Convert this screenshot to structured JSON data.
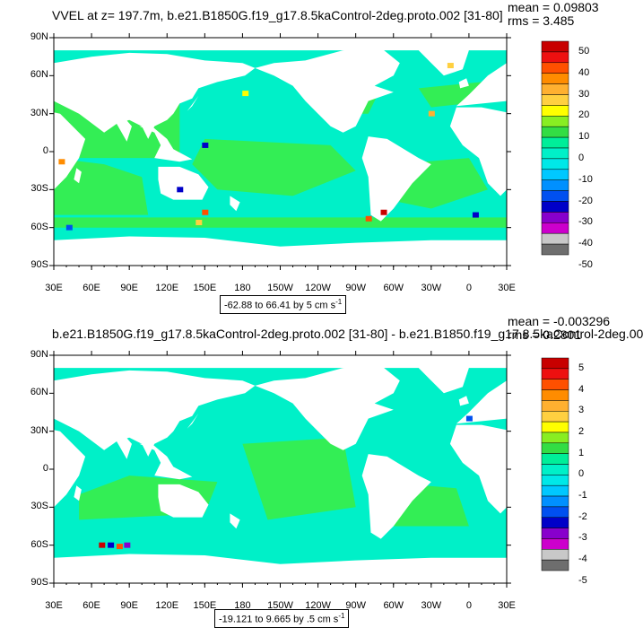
{
  "panels": [
    {
      "title": "VVEL at z= 197.7m, b.e21.B1850G.f19_g17.8.5kaControl-2deg.proto.002 [31-80]",
      "mean": "mean = 0.09803",
      "rms": "rms = 3.485",
      "range_label": "-62.88 to 66.41 by 5 cm s",
      "range_unit_sup": "-1",
      "colorbar_labels": [
        "50",
        "40",
        "30",
        "20",
        "10",
        "0",
        "-10",
        "-20",
        "-30",
        "-40",
        "-50"
      ]
    },
    {
      "title": "b.e21.B1850G.f19_g17.8.5kaControl-2deg.proto.002 [31-80] - b.e21.B1850.f19_g17.8.5kaControl-2deg.00",
      "mean": "mean = -0.003296",
      "rms": "rms = 0.2801",
      "range_label": "-19.121 to 9.665 by .5 cm s",
      "range_unit_sup": "-1",
      "colorbar_labels": [
        "5",
        "4",
        "3",
        "2",
        "1",
        "0",
        "-1",
        "-2",
        "-3",
        "-4",
        "-5"
      ]
    }
  ],
  "lat_labels": [
    "90N",
    "60N",
    "30N",
    "0",
    "30S",
    "60S",
    "90S"
  ],
  "lon_labels": [
    "30E",
    "60E",
    "90E",
    "120E",
    "150E",
    "180",
    "150W",
    "120W",
    "90W",
    "60W",
    "30W",
    "0",
    "30E"
  ],
  "colors": {
    "ocean_main": "#00f0c8",
    "ocean_green": "#33ee55",
    "land": "#ffffff",
    "palette": [
      "#c80000",
      "#ee1010",
      "#ff5000",
      "#ff8c00",
      "#ffb030",
      "#ffd040",
      "#ffff00",
      "#88ee22",
      "#33dd44",
      "#00ee99",
      "#00f0c8",
      "#00e8e8",
      "#00c8ff",
      "#0090ff",
      "#0050f0",
      "#0000c8",
      "#8800cc",
      "#cc00cc",
      "#c8c8c8",
      "#6e6e6e"
    ]
  }
}
